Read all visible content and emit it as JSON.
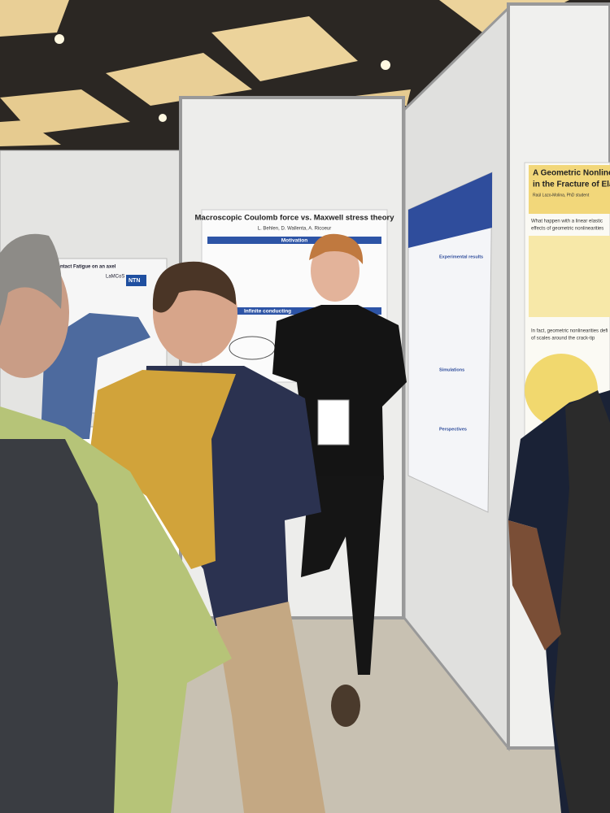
{
  "posters": [
    {
      "title": "Macroscopic Coulomb force vs. Maxwell stress theory",
      "authors": "L. Behlen, D. Wallenta, A. Ricoeur",
      "sections": [
        "Motivation",
        "Infinite conducting"
      ]
    },
    {
      "title_lines": [
        "A Geometric Nonline",
        "in the Fracture of Elas"
      ],
      "author": "Raúl Lazo-Molina, PhD student",
      "lines": [
        "What happen with a linear elastic",
        "effects of geometric nonlinearities",
        "In fact, geometric nonlinearities defi",
        "of scales around the crack-tip"
      ]
    },
    {
      "sections": [
        "Experimental results",
        "Simulations",
        "Perspectives"
      ]
    },
    {
      "title": "Contact Fatigue on an axel",
      "logos": [
        "LaMCoS",
        "NTN"
      ]
    }
  ]
}
